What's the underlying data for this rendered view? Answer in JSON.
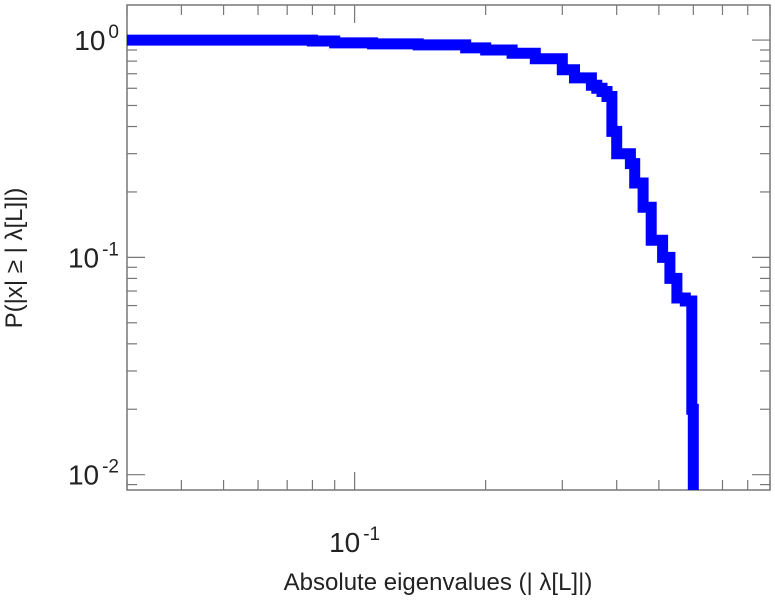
{
  "chart_data": {
    "type": "line",
    "title": "",
    "xlabel": "Absolute eigenvalues (|     λ[L]|)",
    "ylabel": "P(|x|  ≥ | λ[L]|)",
    "xscale": "log",
    "yscale": "log",
    "xlim": [
      0.03,
      0.9
    ],
    "ylim": [
      0.0085,
      1.45
    ],
    "grid": false,
    "legend": "none",
    "line_color": "#0000ff",
    "x_ticks": [
      {
        "value": 0.1,
        "base": "10",
        "exp": "-1"
      }
    ],
    "y_ticks": [
      {
        "value": 1,
        "base": "10",
        "exp": "0"
      },
      {
        "value": 0.1,
        "base": "10",
        "exp": "-1"
      },
      {
        "value": 0.01,
        "base": "10",
        "exp": "-2"
      }
    ],
    "series": [
      {
        "x": [
          0.03,
          0.07,
          0.08,
          0.09,
          0.11,
          0.14,
          0.18,
          0.2,
          0.23,
          0.26,
          0.3,
          0.32,
          0.35,
          0.36,
          0.37,
          0.38,
          0.39,
          0.4,
          0.43,
          0.44,
          0.46,
          0.48,
          0.51,
          0.53,
          0.55,
          0.575,
          0.595,
          0.6
        ],
        "y": [
          1.0,
          1.0,
          0.99,
          0.97,
          0.96,
          0.95,
          0.92,
          0.9,
          0.87,
          0.82,
          0.73,
          0.67,
          0.62,
          0.6,
          0.58,
          0.55,
          0.38,
          0.3,
          0.27,
          0.22,
          0.17,
          0.12,
          0.1,
          0.08,
          0.065,
          0.063,
          0.02,
          0.0085
        ]
      }
    ]
  }
}
